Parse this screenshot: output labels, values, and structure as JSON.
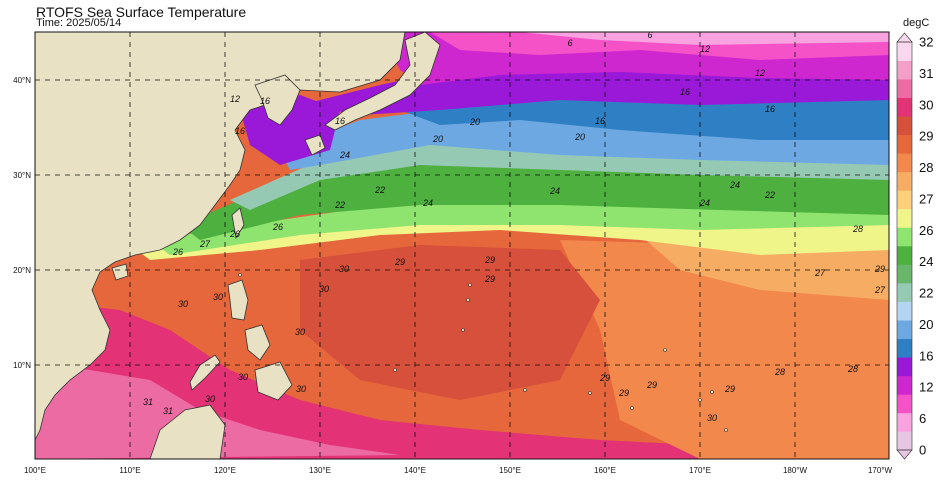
{
  "title": "RTOFS Sea Surface Temperature",
  "subtitle": "Time: 2025/05/14",
  "unit": "degC",
  "lat_labels": [
    "10°N",
    "20°N",
    "30°N",
    "40°N"
  ],
  "lon_labels": [
    "100°E",
    "110°E",
    "120°E",
    "130°E",
    "140°E",
    "150°E",
    "160°E",
    "170°E",
    "180°W",
    "170°W"
  ],
  "colorbar": {
    "labels": [
      "0",
      "6",
      "12",
      "16",
      "20",
      "22",
      "24",
      "26",
      "27",
      "28",
      "29",
      "30",
      "31",
      "32"
    ],
    "colors": [
      "#e7c6e3",
      "#f8a3e0",
      "#f552c8",
      "#cf27cf",
      "#9a19d8",
      "#2f7fc4",
      "#6ea8e3",
      "#b4d5f1",
      "#95c9b4",
      "#69b66b",
      "#4db03f",
      "#8fe36f",
      "#f0f58a",
      "#fbd078",
      "#f7ac63",
      "#f2884b",
      "#e5673b",
      "#d6503b",
      "#e33276",
      "#ed6ba3",
      "#f49fc8",
      "#f9d7ef"
    ]
  },
  "contour_labels": [
    "6",
    "6",
    "12",
    "12",
    "12",
    "16",
    "16",
    "16",
    "16",
    "16",
    "16",
    "20",
    "20",
    "20",
    "22",
    "22",
    "22",
    "24",
    "24",
    "24",
    "24",
    "24",
    "26",
    "26",
    "26",
    "27",
    "27",
    "27",
    "28",
    "28",
    "28",
    "29",
    "29",
    "29",
    "29",
    "29",
    "29",
    "29",
    "29",
    "30",
    "30",
    "30",
    "30",
    "30",
    "30",
    "30",
    "30",
    "30",
    "31",
    "31"
  ]
}
